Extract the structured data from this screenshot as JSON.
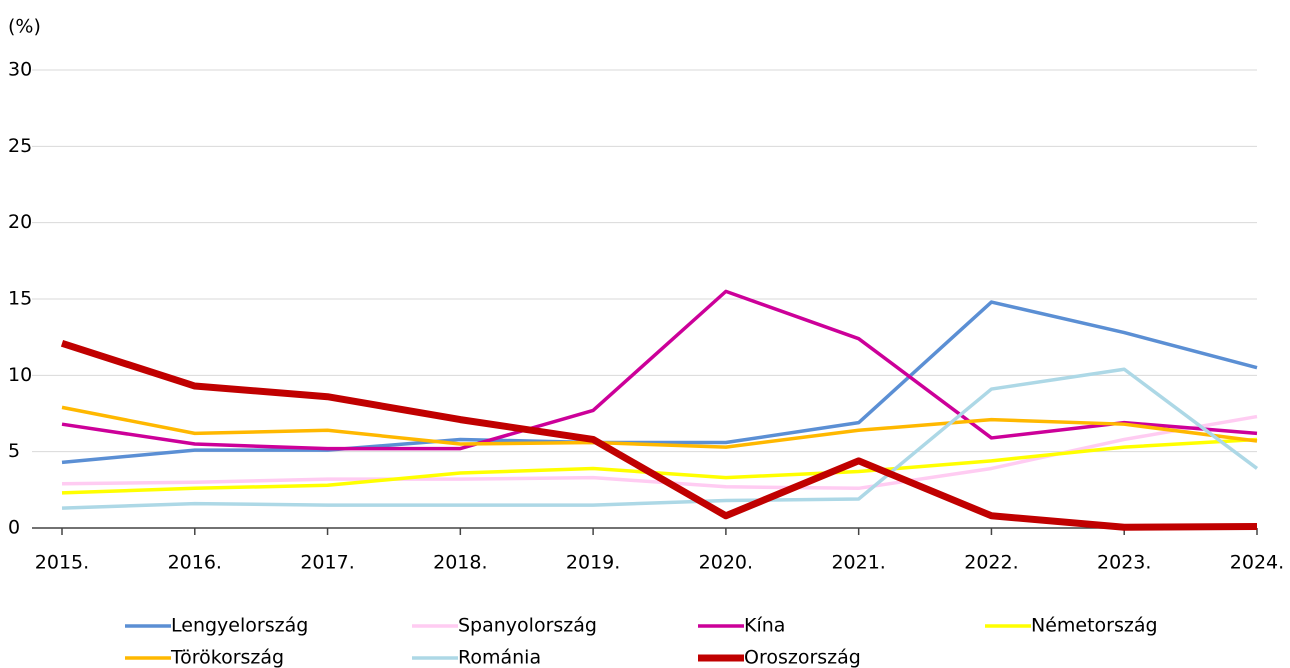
{
  "chart_data": {
    "type": "line",
    "y_label": "(%)",
    "categories": [
      "2015.",
      "2016.",
      "2017.",
      "2018.",
      "2019.",
      "2020.",
      "2021.",
      "2022.",
      "2023.",
      "2024."
    ],
    "ylim": [
      0,
      30
    ],
    "yticks": [
      0,
      5,
      10,
      15,
      20,
      25,
      30
    ],
    "grid": true,
    "series": [
      {
        "name": "Lengyelország",
        "color": "#5b8fd4",
        "line_width": 3.5,
        "values": [
          4.3,
          5.1,
          5.1,
          5.8,
          5.6,
          5.6,
          6.9,
          14.8,
          12.8,
          10.5
        ]
      },
      {
        "name": "Spanyolország",
        "color": "#ffccf2",
        "line_width": 3.5,
        "values": [
          2.9,
          3.0,
          3.2,
          3.2,
          3.3,
          2.7,
          2.6,
          3.9,
          5.8,
          7.3
        ]
      },
      {
        "name": "Kína",
        "color": "#cc0099",
        "line_width": 3.5,
        "values": [
          6.8,
          5.5,
          5.2,
          5.2,
          7.7,
          15.5,
          12.4,
          5.9,
          6.9,
          6.2
        ]
      },
      {
        "name": "Németország",
        "color": "#ffff00",
        "line_width": 3.5,
        "values": [
          2.3,
          2.6,
          2.8,
          3.6,
          3.9,
          3.3,
          3.7,
          4.4,
          5.3,
          5.8
        ]
      },
      {
        "name": "Törökország",
        "color": "#ffb800",
        "line_width": 3.5,
        "values": [
          7.9,
          6.2,
          6.4,
          5.5,
          5.6,
          5.3,
          6.4,
          7.1,
          6.8,
          5.7
        ]
      },
      {
        "name": "Románia",
        "color": "#add8e6",
        "line_width": 3.5,
        "values": [
          1.3,
          1.6,
          1.5,
          1.5,
          1.5,
          1.8,
          1.9,
          9.1,
          10.4,
          3.9
        ]
      },
      {
        "name": "Oroszország",
        "color": "#c00000",
        "line_width": 7,
        "values": [
          12.1,
          9.3,
          8.6,
          7.1,
          5.8,
          0.8,
          4.4,
          0.8,
          0.05,
          0.1
        ]
      }
    ]
  }
}
